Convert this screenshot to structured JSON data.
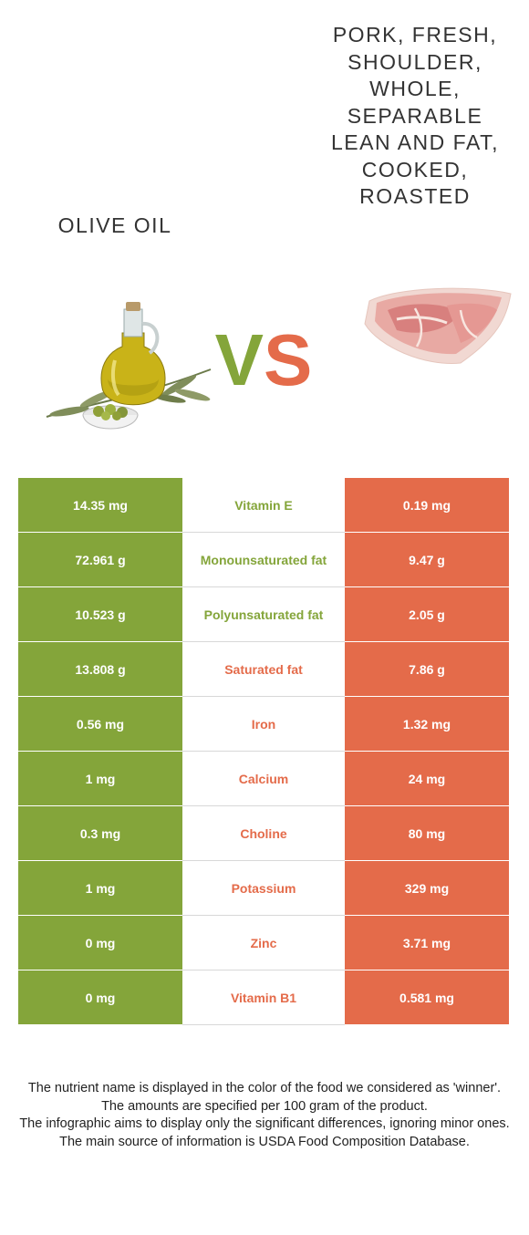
{
  "left_food": {
    "name": "Olive oil",
    "color": "#84a53a",
    "image": "olive-oil-bottle-with-olives"
  },
  "right_food": {
    "name": "Pork, fresh, shoulder, whole, separable lean and fat, cooked, roasted",
    "color": "#e46b4a",
    "image": "pork-shoulder-roast"
  },
  "vs": {
    "v": "V",
    "s": "S"
  },
  "rows": [
    {
      "nutrient": "Vitamin E",
      "left": "14.35 mg",
      "right": "0.19 mg",
      "winner": "left"
    },
    {
      "nutrient": "Monounsaturated fat",
      "left": "72.961 g",
      "right": "9.47 g",
      "winner": "left"
    },
    {
      "nutrient": "Polyunsaturated fat",
      "left": "10.523 g",
      "right": "2.05 g",
      "winner": "left"
    },
    {
      "nutrient": "Saturated fat",
      "left": "13.808 g",
      "right": "7.86 g",
      "winner": "right"
    },
    {
      "nutrient": "Iron",
      "left": "0.56 mg",
      "right": "1.32 mg",
      "winner": "right"
    },
    {
      "nutrient": "Calcium",
      "left": "1 mg",
      "right": "24 mg",
      "winner": "right"
    },
    {
      "nutrient": "Choline",
      "left": "0.3 mg",
      "right": "80 mg",
      "winner": "right"
    },
    {
      "nutrient": "Potassium",
      "left": "1 mg",
      "right": "329 mg",
      "winner": "right"
    },
    {
      "nutrient": "Zinc",
      "left": "0 mg",
      "right": "3.71 mg",
      "winner": "right"
    },
    {
      "nutrient": "Vitamin B1",
      "left": "0 mg",
      "right": "0.581 mg",
      "winner": "right"
    }
  ],
  "footer": {
    "line1": "The nutrient name is displayed in the color of the food we considered as 'winner'.",
    "line2": "The amounts are specified per 100 gram of the product.",
    "line3": "The infographic aims to display only the significant differences, ignoring minor ones.",
    "line4": "The main source of information is USDA Food Composition Database."
  }
}
